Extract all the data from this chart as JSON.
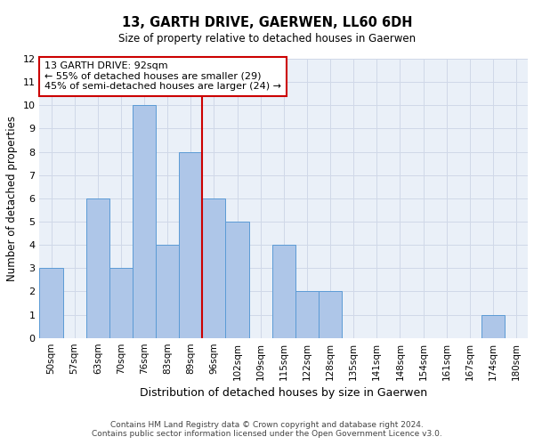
{
  "title": "13, GARTH DRIVE, GAERWEN, LL60 6DH",
  "subtitle": "Size of property relative to detached houses in Gaerwen",
  "xlabel": "Distribution of detached houses by size in Gaerwen",
  "ylabel": "Number of detached properties",
  "categories": [
    "50sqm",
    "57sqm",
    "63sqm",
    "70sqm",
    "76sqm",
    "83sqm",
    "89sqm",
    "96sqm",
    "102sqm",
    "109sqm",
    "115sqm",
    "122sqm",
    "128sqm",
    "135sqm",
    "141sqm",
    "148sqm",
    "154sqm",
    "161sqm",
    "167sqm",
    "174sqm",
    "180sqm"
  ],
  "values": [
    3,
    0,
    6,
    3,
    10,
    4,
    8,
    6,
    5,
    0,
    4,
    2,
    2,
    0,
    0,
    0,
    0,
    0,
    0,
    1,
    0
  ],
  "bar_color": "#aec6e8",
  "bar_edge_color": "#5b9bd5",
  "grid_color": "#d0d8e8",
  "background_color": "#eaf0f8",
  "vline_color": "#cc0000",
  "annotation_line1": "13 GARTH DRIVE: 92sqm",
  "annotation_line2": "← 55% of detached houses are smaller (29)",
  "annotation_line3": "45% of semi-detached houses are larger (24) →",
  "annotation_box_color": "#cc0000",
  "ylim": [
    0,
    12
  ],
  "yticks": [
    0,
    1,
    2,
    3,
    4,
    5,
    6,
    7,
    8,
    9,
    10,
    11,
    12
  ],
  "footer_line1": "Contains HM Land Registry data © Crown copyright and database right 2024.",
  "footer_line2": "Contains public sector information licensed under the Open Government Licence v3.0."
}
